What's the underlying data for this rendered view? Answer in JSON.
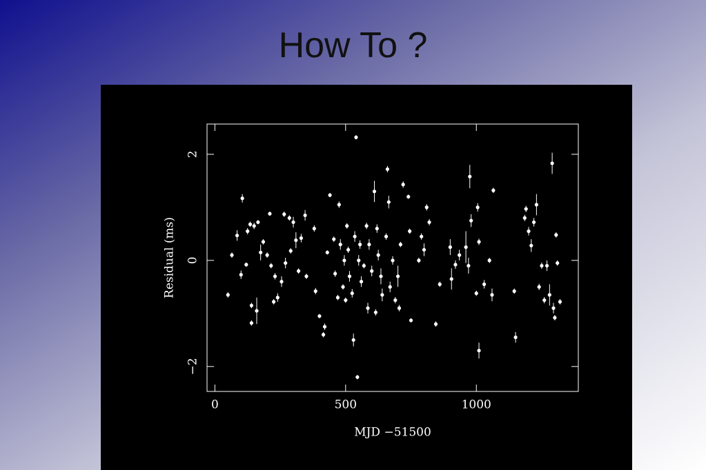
{
  "page_title": "How To ?",
  "chart_data": {
    "type": "scatter",
    "xlabel": "MJD −51500",
    "ylabel": "Residual (ms)",
    "xlim": [
      -30,
      1390
    ],
    "ylim": [
      -2.47,
      2.57
    ],
    "xticks": [
      0,
      500,
      1000
    ],
    "yticks": [
      {
        "value": -2,
        "label": "−2"
      },
      0,
      2
    ],
    "color": "#ffffff",
    "series": [
      {
        "x": [
          50,
          65,
          85,
          100,
          105,
          120,
          125,
          135,
          140,
          140,
          150,
          160,
          165,
          175,
          185,
          200,
          210,
          215,
          225,
          230,
          240,
          255,
          265,
          270,
          285,
          290,
          300,
          310,
          320,
          330,
          345,
          350,
          380,
          385,
          400,
          415,
          420,
          430,
          440,
          455,
          460,
          470,
          475,
          480,
          490,
          495,
          500,
          505,
          510,
          515,
          525,
          530,
          535,
          540,
          545,
          550,
          555,
          560,
          570,
          580,
          585,
          590,
          600,
          610,
          615,
          620,
          625,
          635,
          640,
          655,
          660,
          665,
          670,
          680,
          690,
          700,
          705,
          710,
          720,
          740,
          745,
          750,
          780,
          790,
          800,
          810,
          820,
          845,
          860,
          900,
          905,
          920,
          935,
          960,
          970,
          975,
          980,
          1000,
          1005,
          1010,
          1010,
          1030,
          1050,
          1060,
          1065,
          1145,
          1150,
          1185,
          1190,
          1200,
          1210,
          1220,
          1230,
          1240,
          1250,
          1260,
          1270,
          1280,
          1290,
          1295,
          1300,
          1305,
          1310,
          1320
        ],
        "values": [
          -0.65,
          0.1,
          0.47,
          -0.27,
          1.17,
          -0.08,
          0.55,
          0.68,
          -0.85,
          -1.18,
          0.65,
          -0.95,
          0.72,
          0.15,
          0.35,
          0.1,
          0.88,
          -0.1,
          -0.78,
          -0.3,
          -0.7,
          -0.4,
          0.87,
          -0.05,
          0.8,
          0.18,
          0.72,
          0.38,
          -0.2,
          0.42,
          0.85,
          -0.3,
          0.6,
          -0.58,
          -1.05,
          -1.4,
          -1.25,
          0.15,
          1.23,
          0.4,
          -0.25,
          -0.7,
          1.05,
          0.3,
          -0.5,
          0.0,
          -0.75,
          0.65,
          0.2,
          -0.3,
          -0.62,
          -1.5,
          0.45,
          2.32,
          -2.2,
          0.0,
          0.3,
          -0.4,
          -0.1,
          0.65,
          -0.9,
          0.3,
          -0.2,
          1.3,
          -0.98,
          0.6,
          0.1,
          -0.3,
          -0.65,
          0.45,
          1.72,
          1.1,
          -0.5,
          0.0,
          -0.75,
          -0.3,
          -0.9,
          0.3,
          1.43,
          1.2,
          0.55,
          -1.13,
          0.0,
          0.45,
          0.2,
          1.0,
          0.72,
          -1.2,
          -0.45,
          0.25,
          -0.35,
          -0.08,
          0.1,
          0.25,
          -0.1,
          1.58,
          0.75,
          -0.62,
          1.0,
          -1.7,
          0.35,
          -0.45,
          0.0,
          -0.65,
          1.32,
          -0.58,
          -1.45,
          0.8,
          0.97,
          0.55,
          0.28,
          0.72,
          1.05,
          -0.5,
          -0.1,
          -0.75,
          -0.1,
          -0.65,
          1.83,
          -0.9,
          -1.08,
          0.48,
          -0.05,
          -0.78
        ],
        "y_errors": [
          0.05,
          0.05,
          0.1,
          0.08,
          0.08,
          0.04,
          0.06,
          0.05,
          0.05,
          0.05,
          0.06,
          0.25,
          0.04,
          0.15,
          0.05,
          0.05,
          0.04,
          0.05,
          0.05,
          0.06,
          0.08,
          0.1,
          0.05,
          0.1,
          0.05,
          0.05,
          0.1,
          0.15,
          0.05,
          0.08,
          0.1,
          0.05,
          0.06,
          0.06,
          0.04,
          0.05,
          0.06,
          0.04,
          0.04,
          0.05,
          0.06,
          0.05,
          0.06,
          0.1,
          0.05,
          0.1,
          0.05,
          0.05,
          0.06,
          0.1,
          0.08,
          0.12,
          0.1,
          0.04,
          0.04,
          0.1,
          0.08,
          0.1,
          0.05,
          0.06,
          0.1,
          0.1,
          0.1,
          0.2,
          0.06,
          0.08,
          0.1,
          0.15,
          0.12,
          0.06,
          0.06,
          0.12,
          0.1,
          0.08,
          0.06,
          0.2,
          0.06,
          0.05,
          0.06,
          0.04,
          0.05,
          0.04,
          0.05,
          0.06,
          0.12,
          0.06,
          0.06,
          0.05,
          0.05,
          0.15,
          0.2,
          0.08,
          0.1,
          0.3,
          0.15,
          0.22,
          0.12,
          0.05,
          0.08,
          0.15,
          0.06,
          0.08,
          0.05,
          0.12,
          0.05,
          0.05,
          0.1,
          0.06,
          0.06,
          0.08,
          0.12,
          0.08,
          0.2,
          0.06,
          0.06,
          0.06,
          0.1,
          0.2,
          0.2,
          0.1,
          0.05,
          0.05,
          0.05,
          0.05
        ]
      }
    ]
  }
}
